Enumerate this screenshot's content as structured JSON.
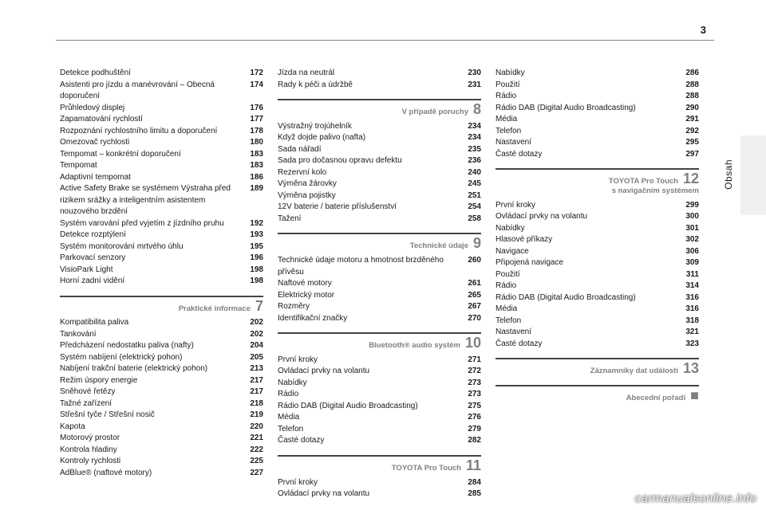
{
  "pageNumber": "3",
  "sideLabel": "Obsah",
  "watermark": "carmanualsonline.info",
  "columns": [
    {
      "groups": [
        {
          "items": [
            {
              "label": "Detekce podhuštění",
              "page": "172"
            },
            {
              "label": "Asistenti pro jízdu a manévrování – Obecná doporučení",
              "page": "174"
            },
            {
              "label": "Průhledový displej",
              "page": "176"
            },
            {
              "label": "Zapamatování rychlostí",
              "page": "177"
            },
            {
              "label": "Rozpoznání rychlostního limitu a doporučení",
              "page": "178"
            },
            {
              "label": "Omezovač rychlosti",
              "page": "180"
            },
            {
              "label": "Tempomat – konkrétní doporučení",
              "page": "183"
            },
            {
              "label": "Tempomat",
              "page": "183"
            },
            {
              "label": "Adaptivní tempomat",
              "page": "186"
            },
            {
              "label": "Active Safety Brake se systémem Výstraha před rizikem srážky a inteligentním asistentem nouzového brzdění",
              "page": "189"
            },
            {
              "label": "Systém varování před vyjetím z jízdního pruhu",
              "page": "192"
            },
            {
              "label": "Detekce rozptýlení",
              "page": "193"
            },
            {
              "label": "Systém monitorování mrtvého úhlu",
              "page": "195"
            },
            {
              "label": "Parkovací senzory",
              "page": "196"
            },
            {
              "label": "VisioPark Light",
              "page": "198"
            },
            {
              "label": "Horní zadní vidění",
              "page": "198"
            }
          ]
        },
        {
          "section": {
            "title": "Praktické informace",
            "num": "7"
          },
          "items": [
            {
              "label": "Kompatibilita paliva",
              "page": "202"
            },
            {
              "label": "Tankování",
              "page": "202"
            },
            {
              "label": "Předcházení nedostatku paliva (nafty)",
              "page": "204"
            },
            {
              "label": "Systém nabíjení (elektrický pohon)",
              "page": "205"
            },
            {
              "label": "Nabíjení trakční baterie (elektrický pohon)",
              "page": "213"
            },
            {
              "label": "Režim úspory energie",
              "page": "217"
            },
            {
              "label": "Sněhové řetězy",
              "page": "217"
            },
            {
              "label": "Tažné zařízení",
              "page": "218"
            },
            {
              "label": "Střešní tyče / Střešní nosič",
              "page": "219"
            },
            {
              "label": "Kapota",
              "page": "220"
            },
            {
              "label": "Motorový prostor",
              "page": "221"
            },
            {
              "label": "Kontrola hladiny",
              "page": "222"
            },
            {
              "label": "Kontroly rychlosti",
              "page": "225"
            },
            {
              "label": "AdBlue® (naftové motory)",
              "page": "227"
            }
          ]
        }
      ]
    },
    {
      "groups": [
        {
          "items": [
            {
              "label": "Jízda na neutrál",
              "page": "230"
            },
            {
              "label": "Rady k péči a údržbě",
              "page": "231"
            }
          ]
        },
        {
          "section": {
            "title": "V případě poruchy",
            "num": "8"
          },
          "items": [
            {
              "label": "Výstražný trojúhelník",
              "page": "234"
            },
            {
              "label": "Když dojde palivo (nafta)",
              "page": "234"
            },
            {
              "label": "Sada nářadí",
              "page": "235"
            },
            {
              "label": "Sada pro dočasnou opravu defektu",
              "page": "236"
            },
            {
              "label": "Rezervní kolo",
              "page": "240"
            },
            {
              "label": "Výměna žárovky",
              "page": "245"
            },
            {
              "label": "Výměna pojistky",
              "page": "251"
            },
            {
              "label": "12V baterie / baterie příslušenství",
              "page": "254"
            },
            {
              "label": "Tažení",
              "page": "258"
            }
          ]
        },
        {
          "section": {
            "title": "Technické údaje",
            "num": "9"
          },
          "items": [
            {
              "label": "Technické údaje motoru a hmotnost brzděného přívěsu",
              "page": "260"
            },
            {
              "label": "Naftové motory",
              "page": "261"
            },
            {
              "label": "Elektrický motor",
              "page": "265"
            },
            {
              "label": "Rozměry",
              "page": "267"
            },
            {
              "label": "Identifikační značky",
              "page": "270"
            }
          ]
        },
        {
          "section": {
            "title": "Bluetooth® audio systém",
            "num": "10"
          },
          "items": [
            {
              "label": "První kroky",
              "page": "271"
            },
            {
              "label": "Ovládací prvky na volantu",
              "page": "272"
            },
            {
              "label": "Nabídky",
              "page": "273"
            },
            {
              "label": "Rádio",
              "page": "273"
            },
            {
              "label": "Rádio DAB (Digital Audio Broadcasting)",
              "page": "275"
            },
            {
              "label": "Média",
              "page": "276"
            },
            {
              "label": "Telefon",
              "page": "279"
            },
            {
              "label": "Časté dotazy",
              "page": "282"
            }
          ]
        },
        {
          "section": {
            "title": "TOYOTA Pro Touch",
            "num": "11"
          },
          "items": [
            {
              "label": "První kroky",
              "page": "284"
            },
            {
              "label": "Ovládací prvky na volantu",
              "page": "285"
            }
          ]
        }
      ]
    },
    {
      "groups": [
        {
          "items": [
            {
              "label": "Nabídky",
              "page": "286"
            },
            {
              "label": "Použití",
              "page": "288"
            },
            {
              "label": "Rádio",
              "page": "288"
            },
            {
              "label": "Rádio DAB (Digital Audio Broadcasting)",
              "page": "290"
            },
            {
              "label": "Média",
              "page": "291"
            },
            {
              "label": "Telefon",
              "page": "292"
            },
            {
              "label": "Nastavení",
              "page": "295"
            },
            {
              "label": "Časté dotazy",
              "page": "297"
            }
          ]
        },
        {
          "section": {
            "title": "TOYOTA Pro Touch",
            "num": "12",
            "sub": "s navigačním systémem"
          },
          "items": [
            {
              "label": "První kroky",
              "page": "299"
            },
            {
              "label": "Ovládací prvky na volantu",
              "page": "300"
            },
            {
              "label": "Nabídky",
              "page": "301"
            },
            {
              "label": "Hlasové příkazy",
              "page": "302"
            },
            {
              "label": "Navigace",
              "page": "306"
            },
            {
              "label": "Připojená navigace",
              "page": "309"
            },
            {
              "label": "Použití",
              "page": "311"
            },
            {
              "label": "Rádio",
              "page": "314"
            },
            {
              "label": "Rádio DAB (Digital Audio Broadcasting)",
              "page": "316"
            },
            {
              "label": "Média",
              "page": "316"
            },
            {
              "label": "Telefon",
              "page": "318"
            },
            {
              "label": "Nastavení",
              "page": "321"
            },
            {
              "label": "Časté dotazy",
              "page": "323"
            }
          ]
        },
        {
          "section": {
            "title": "Záznamníky dat událostí",
            "num": "13"
          },
          "items": []
        },
        {
          "section": {
            "title": "Abecední pořadí",
            "dot": "■"
          },
          "items": []
        }
      ]
    }
  ]
}
